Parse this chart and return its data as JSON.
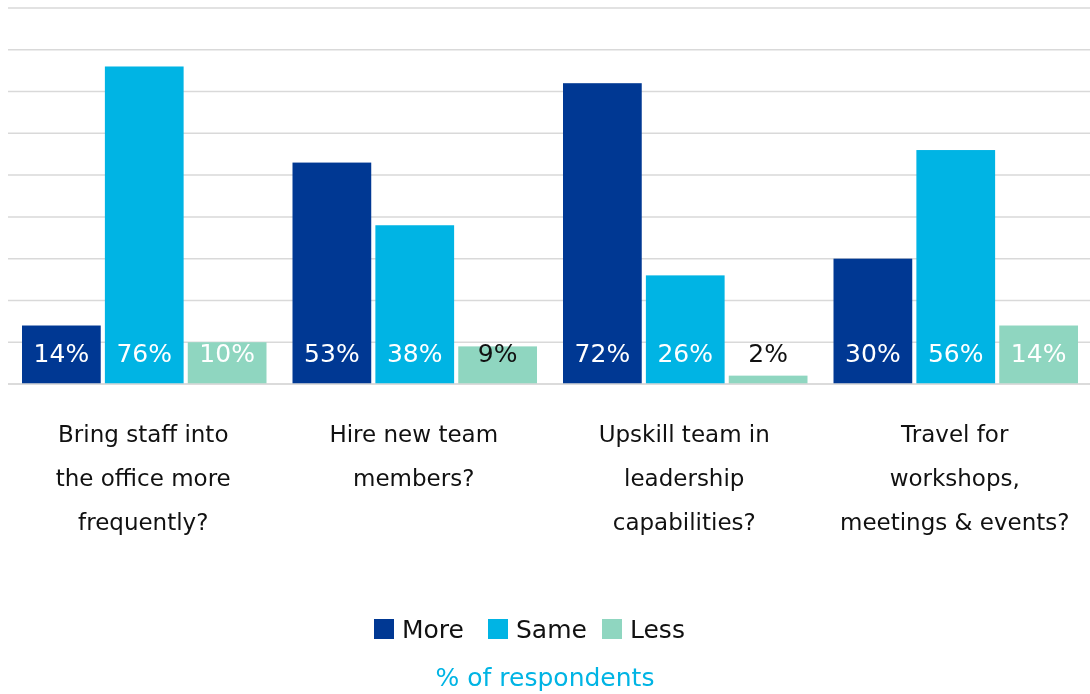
{
  "chart_data": {
    "type": "bar",
    "annotations": [
      "% of respondents"
    ],
    "categories": [
      "Bring staff into the office more frequently?",
      "Hire new team members?",
      "Upskill team in leadership capabilities?",
      "Travel for workshops, meetings & events?"
    ],
    "series": [
      {
        "name": "More",
        "color": "#003893",
        "values": [
          14,
          53,
          72,
          30
        ],
        "value_labels": [
          "14%",
          "53%",
          "72%",
          "30%"
        ]
      },
      {
        "name": "Same",
        "color": "#00b4e4",
        "values": [
          76,
          38,
          26,
          56
        ],
        "value_labels": [
          "76%",
          "38%",
          "26%",
          "56%"
        ]
      },
      {
        "name": "Less",
        "color": "#8fd6c0",
        "values": [
          10,
          9,
          2,
          14
        ],
        "value_labels": [
          "10%",
          "9%",
          "2%",
          "14%"
        ]
      }
    ],
    "ylim": [
      0,
      90
    ],
    "yticks": [
      {
        "value": 0,
        "label": null
      },
      {
        "value": 10,
        "label": null
      },
      {
        "value": 20,
        "label": null
      },
      {
        "value": 30,
        "label": null
      },
      {
        "value": 40,
        "label": null
      },
      {
        "value": 50,
        "label": null
      },
      {
        "value": 60,
        "label": null
      },
      {
        "value": 70,
        "label": null
      },
      {
        "value": 80,
        "label": null
      },
      {
        "value": 90,
        "label": null
      }
    ],
    "tick_labels": "x",
    "grid": "y",
    "legend": "bottom"
  }
}
